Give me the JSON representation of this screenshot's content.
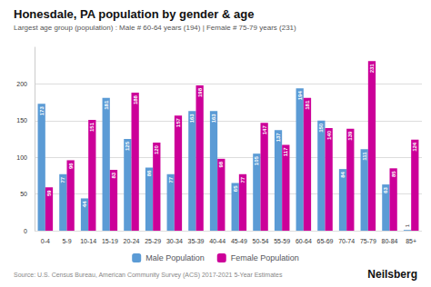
{
  "chart_data": {
    "type": "bar",
    "title": "Honesdale, PA population by gender & age",
    "subtitle": "Largest age group (population) : Male # 60-64 years (194) | Female # 75-79 years (231)",
    "annotations": [
      "Source: U.S. Census Bureau, American Community Survey (ACS) 2017-2021 5-Year Estimates",
      "Neilsberg"
    ],
    "categories": [
      "0-4",
      "5-9",
      "10-14",
      "15-19",
      "20-24",
      "25-29",
      "30-34",
      "35-39",
      "40-44",
      "45-49",
      "50-54",
      "55-59",
      "60-64",
      "65-69",
      "70-74",
      "75-79",
      "80-84",
      "85+"
    ],
    "series": [
      {
        "name": "Male Population",
        "color": "#5B9BD5",
        "values": [
          173,
          77,
          44,
          181,
          125,
          86,
          77,
          163,
          163,
          65,
          105,
          137,
          194,
          150,
          84,
          111,
          63,
          1
        ]
      },
      {
        "name": "Female Population",
        "color": "#CC0099",
        "values": [
          59,
          96,
          151,
          83,
          188,
          120,
          157,
          198,
          98,
          77,
          147,
          117,
          181,
          140,
          139,
          231,
          85,
          124
        ]
      }
    ],
    "ylim": [
      0,
      250
    ],
    "yticks": [
      0,
      50,
      100,
      150,
      200
    ],
    "grid": true,
    "legend": "bottom",
    "data_labels": true
  }
}
